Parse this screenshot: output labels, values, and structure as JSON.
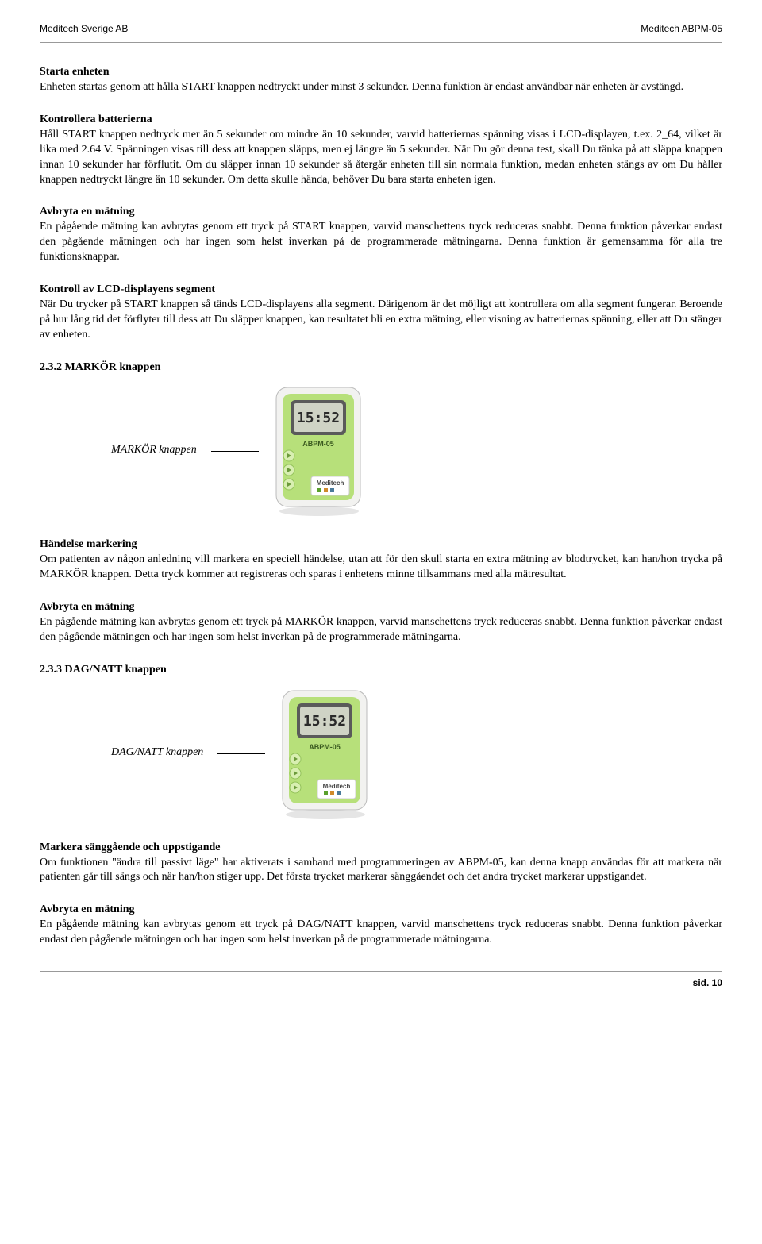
{
  "header": {
    "left": "Meditech Sverige AB",
    "right": "Meditech ABPM-05"
  },
  "sections": {
    "s1": {
      "title": "Starta enheten",
      "body": "Enheten startas genom att hålla START knappen nedtryckt under minst 3 sekunder. Denna funktion är endast användbar när enheten är avstängd."
    },
    "s2": {
      "title": "Kontrollera batterierna",
      "body": "Håll START knappen nedtryck mer än 5 sekunder om mindre än 10 sekunder, varvid batteriernas spänning visas i LCD-displayen, t.ex. 2_64, vilket är lika med 2.64 V. Spänningen visas till dess att knappen släpps, men ej längre än 5 sekunder. När Du gör denna test, skall Du tänka på att släppa knappen innan 10 sekunder har förflutit. Om du släpper innan 10 sekunder så återgår enheten till sin normala funktion, medan enheten stängs av om Du håller knappen nedtryckt längre än 10 sekunder. Om detta skulle hända, behöver Du bara starta enheten igen."
    },
    "s3": {
      "title": "Avbryta en mätning",
      "body": "En pågående mätning kan avbrytas genom ett tryck på START knappen, varvid manschettens tryck reduceras snabbt. Denna funktion påverkar endast den pågående mätningen och har ingen som helst inverkan på de programmerade mätningarna. Denna funktion är gemensamma för alla tre funktionsknappar."
    },
    "s4": {
      "title": "Kontroll av LCD-displayens segment",
      "body": "När Du trycker på START knappen så tänds LCD-displayens alla segment. Därigenom är det möjligt att kontrollera om alla segment fungerar. Beroende på hur lång tid det förflyter till dess att Du släpper knappen, kan resultatet bli en extra mätning, eller visning av batteriernas spänning, eller att Du stänger av enheten."
    },
    "markor": {
      "heading": "2.3.2  MARKÖR knappen",
      "figLabel": "MARKÖR knappen",
      "p1title": "Händelse markering",
      "p1body": "Om patienten av någon anledning vill markera en speciell händelse, utan att för den skull starta en extra mätning av blodtrycket, kan han/hon trycka på MARKÖR knappen. Detta tryck kommer att registreras och sparas i enhetens minne tillsammans med alla mätresultat.",
      "p2title": "Avbryta en mätning",
      "p2body": "En pågående mätning kan avbrytas genom ett tryck på MARKÖR knappen, varvid manschettens tryck reduceras snabbt. Denna funktion påverkar endast den pågående mätningen och har ingen som helst inverkan på de programmerade mätningarna."
    },
    "dagnatt": {
      "heading": "2.3.3  DAG/NATT knappen",
      "figLabel": "DAG/NATT knappen",
      "p1title": "Markera sänggående och uppstigande",
      "p1body": "Om funktionen \"ändra till passivt läge\" har aktiverats i samband med programmeringen av ABPM-05, kan denna knapp användas för att markera när patienten går till sängs och när han/hon stiger upp. Det första trycket markerar sänggåendet och det andra trycket markerar uppstigandet.",
      "p2title": "Avbryta en mätning",
      "p2body": "En pågående mätning kan avbrytas genom ett tryck på DAG/NATT knappen, varvid manschettens tryck reduceras snabbt. Denna funktion påverkar endast den pågående mätningen och har ingen som helst inverkan på de programmerade mätningarna."
    }
  },
  "device": {
    "displayTime": "15:52",
    "modelLabel": "ABPM-05",
    "brand": "Meditech",
    "colors": {
      "body": "#f2f2f0",
      "panel": "#b7e07a",
      "lcdFrame": "#5a5a5a",
      "lcdScreen": "#cfd3c5",
      "button": "#d8efb1",
      "shadow": "#cccccc"
    }
  },
  "footer": {
    "pageLabel": "sid.  10"
  }
}
